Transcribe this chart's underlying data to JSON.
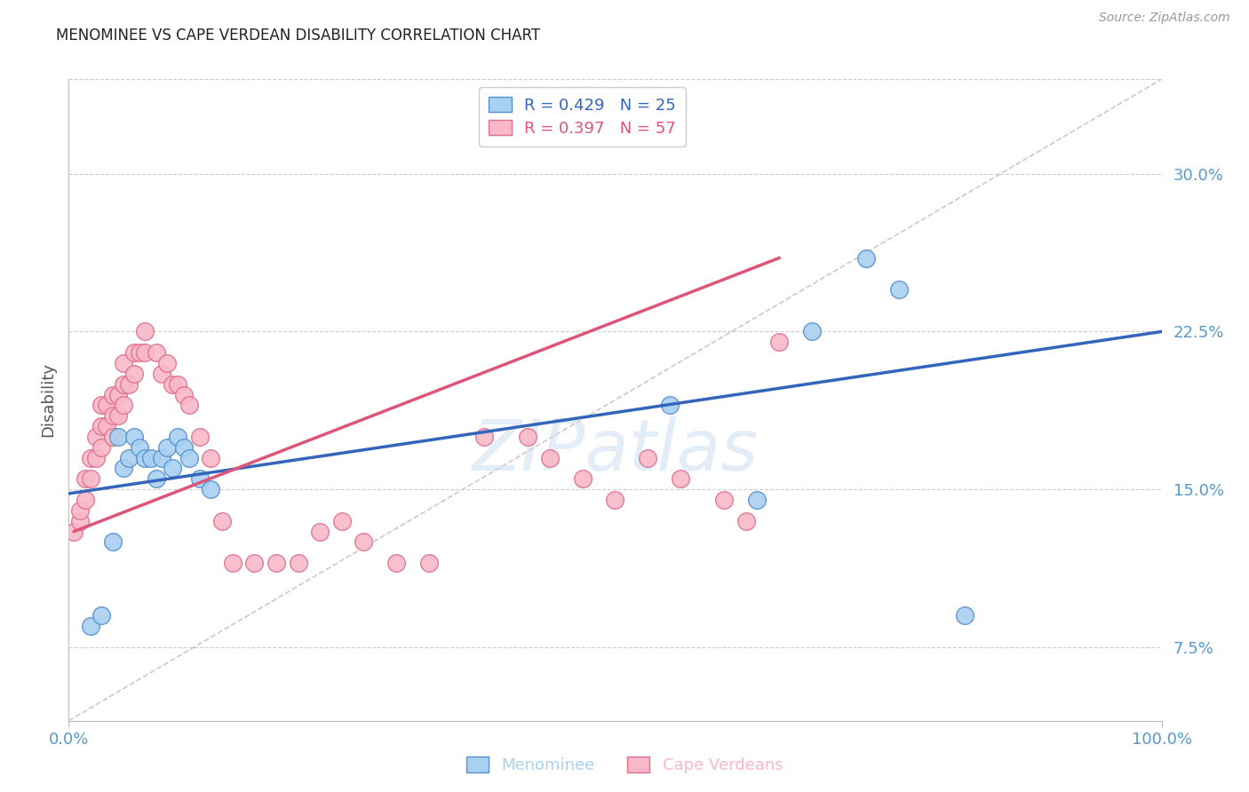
{
  "title": "MENOMINEE VS CAPE VERDEAN DISABILITY CORRELATION CHART",
  "source": "Source: ZipAtlas.com",
  "ylabel": "Disability",
  "watermark": "ZIPatlas",
  "ytick_vals": [
    0.075,
    0.15,
    0.225,
    0.3
  ],
  "ytick_labels": [
    "7.5%",
    "15.0%",
    "22.5%",
    "30.0%"
  ],
  "xlim": [
    0.0,
    1.0
  ],
  "ylim": [
    0.04,
    0.345
  ],
  "menominee_R": 0.429,
  "menominee_N": 25,
  "capeverdean_R": 0.397,
  "capeverdean_N": 57,
  "menominee_color": "#A8D0F0",
  "capeverdean_color": "#F8B8C8",
  "menominee_edge_color": "#5590D0",
  "capeverdean_edge_color": "#E07090",
  "menominee_line_color": "#3366BB",
  "capeverdean_line_color": "#DD5577",
  "diagonal_color": "#C8B8B8",
  "grid_color": "#CCCCCC",
  "title_color": "#222222",
  "source_color": "#999999",
  "axis_label_color": "#5599CC",
  "menominee_x": [
    0.02,
    0.04,
    0.045,
    0.05,
    0.055,
    0.06,
    0.065,
    0.07,
    0.075,
    0.08,
    0.085,
    0.09,
    0.095,
    0.1,
    0.105,
    0.11,
    0.12,
    0.13,
    0.55,
    0.63,
    0.68,
    0.73,
    0.76,
    0.82,
    0.03
  ],
  "menominee_y": [
    0.085,
    0.125,
    0.175,
    0.16,
    0.165,
    0.175,
    0.17,
    0.165,
    0.165,
    0.155,
    0.165,
    0.17,
    0.16,
    0.175,
    0.17,
    0.165,
    0.155,
    0.15,
    0.19,
    0.145,
    0.225,
    0.26,
    0.245,
    0.09,
    0.09
  ],
  "capeverdean_x": [
    0.005,
    0.01,
    0.01,
    0.015,
    0.015,
    0.02,
    0.02,
    0.025,
    0.025,
    0.03,
    0.03,
    0.03,
    0.035,
    0.035,
    0.04,
    0.04,
    0.04,
    0.045,
    0.045,
    0.05,
    0.05,
    0.05,
    0.055,
    0.06,
    0.06,
    0.065,
    0.07,
    0.07,
    0.08,
    0.085,
    0.09,
    0.095,
    0.1,
    0.105,
    0.11,
    0.12,
    0.13,
    0.14,
    0.15,
    0.17,
    0.19,
    0.21,
    0.23,
    0.25,
    0.27,
    0.3,
    0.33,
    0.38,
    0.42,
    0.44,
    0.47,
    0.5,
    0.53,
    0.56,
    0.6,
    0.62,
    0.65
  ],
  "capeverdean_y": [
    0.13,
    0.135,
    0.14,
    0.155,
    0.145,
    0.165,
    0.155,
    0.175,
    0.165,
    0.19,
    0.18,
    0.17,
    0.19,
    0.18,
    0.195,
    0.185,
    0.175,
    0.195,
    0.185,
    0.21,
    0.2,
    0.19,
    0.2,
    0.215,
    0.205,
    0.215,
    0.225,
    0.215,
    0.215,
    0.205,
    0.21,
    0.2,
    0.2,
    0.195,
    0.19,
    0.175,
    0.165,
    0.135,
    0.115,
    0.115,
    0.115,
    0.115,
    0.13,
    0.135,
    0.125,
    0.115,
    0.115,
    0.175,
    0.175,
    0.165,
    0.155,
    0.145,
    0.165,
    0.155,
    0.145,
    0.135,
    0.22
  ],
  "menominee_line_x0": 0.0,
  "menominee_line_x1": 1.0,
  "menominee_line_y0": 0.148,
  "menominee_line_y1": 0.225,
  "capeverdean_line_x0": 0.005,
  "capeverdean_line_x1": 0.65,
  "capeverdean_line_y0": 0.13,
  "capeverdean_line_y1": 0.26
}
